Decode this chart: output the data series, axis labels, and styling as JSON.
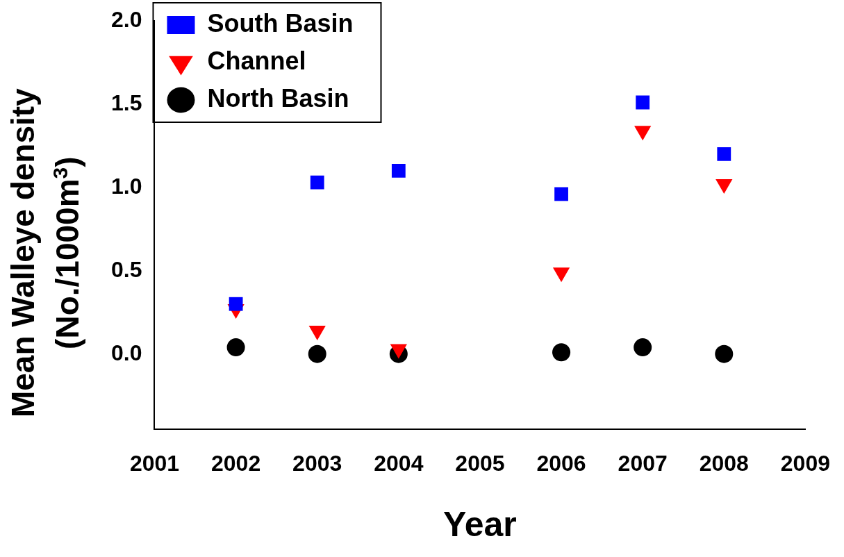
{
  "chart_data": {
    "type": "scatter",
    "xlabel": "Year",
    "ylabel": "Mean Walleye density (No./1000m$^{3}$)",
    "x": [
      2002,
      2003,
      2004,
      2006,
      2007,
      2008
    ],
    "series": [
      {
        "name": "South Basin",
        "color": "#0000ff",
        "marker": "square",
        "values": [
          0.3,
          1.03,
          1.1,
          0.96,
          1.51,
          1.2
        ]
      },
      {
        "name": "Channel",
        "color": "#ff0000",
        "marker": "triangle",
        "values": [
          0.27,
          0.14,
          0.03,
          0.49,
          1.34,
          1.02
        ]
      },
      {
        "name": "North Basin",
        "color": "#000000",
        "marker": "circle",
        "values": [
          0.04,
          0.0,
          0.0,
          0.01,
          0.04,
          0.0
        ]
      }
    ],
    "xlim": [
      2001,
      2009
    ],
    "xticks": [
      2001,
      2002,
      2003,
      2004,
      2005,
      2006,
      2007,
      2008,
      2009
    ],
    "ylim": [
      -0.45,
      2.0
    ],
    "yticks": [
      {
        "value": 0,
        "label": "0.0"
      },
      {
        "value": 0.5,
        "label": "0.5"
      },
      {
        "value": 1,
        "label": "1.0"
      },
      {
        "value": 1.5,
        "label": "1.5"
      },
      {
        "value": 2,
        "label": "2.0"
      }
    ],
    "grid": false,
    "legend": "top left"
  }
}
